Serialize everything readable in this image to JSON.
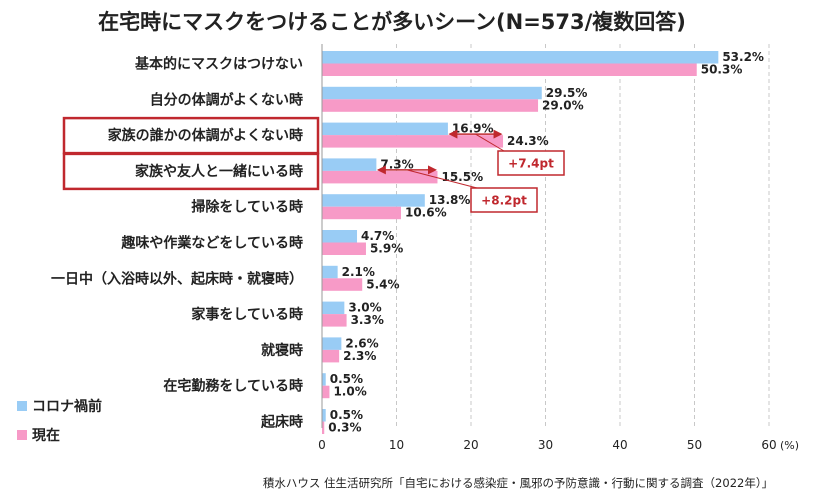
{
  "chart_data": {
    "type": "bar",
    "orientation": "horizontal",
    "title": "在宅時にマスクをつけることが多いシーン(N=573/複数回答)",
    "categories": [
      "基本的にマスクはつけない",
      "自分の体調がよくない時",
      "家族の誰かの体調がよくない時",
      "家族や友人と一緒にいる時",
      "掃除をしている時",
      "趣味や作業などをしている時",
      "一日中（入浴時以外、起床時・就寝時）",
      "家事をしている時",
      "就寝時",
      "在宅勤務をしている時",
      "起床時"
    ],
    "series": [
      {
        "name": "コロナ禍前",
        "color": "#99ccf5",
        "values": [
          53.2,
          29.5,
          16.9,
          7.3,
          13.8,
          4.7,
          2.1,
          3.0,
          2.6,
          0.5,
          0.5
        ]
      },
      {
        "name": "現在",
        "color": "#f79ac7",
        "values": [
          50.3,
          29.0,
          24.3,
          15.5,
          10.6,
          5.9,
          5.4,
          3.3,
          2.3,
          1.0,
          0.3
        ]
      }
    ],
    "value_labels": [
      [
        "53.2%",
        "29.5%",
        "16.9%",
        "7.3%",
        "13.8%",
        "4.7%",
        "2.1%",
        "3.0%",
        "2.6%",
        "0.5%",
        "0.5%"
      ],
      [
        "50.3%",
        "29.0%",
        "24.3%",
        "15.5%",
        "10.6%",
        "5.9%",
        "5.4%",
        "3.3%",
        "2.3%",
        "1.0%",
        "0.3%"
      ]
    ],
    "xlim": [
      0,
      60
    ],
    "xticks": [
      "0",
      "10",
      "20",
      "30",
      "40",
      "50",
      "60"
    ],
    "xunit": "(%)",
    "grid": "vertical dashed",
    "legend_position": "bottom-left",
    "highlighted_categories": [
      2,
      3
    ],
    "annotations": [
      {
        "category": 2,
        "text": "+7.4pt"
      },
      {
        "category": 3,
        "text": "+8.2pt"
      }
    ],
    "source": "積水ハウス 住生活研究所「自宅における感染症・風邪の予防意識・行動に関する調査（2022年）」",
    "accent_color": "#c0282e"
  }
}
